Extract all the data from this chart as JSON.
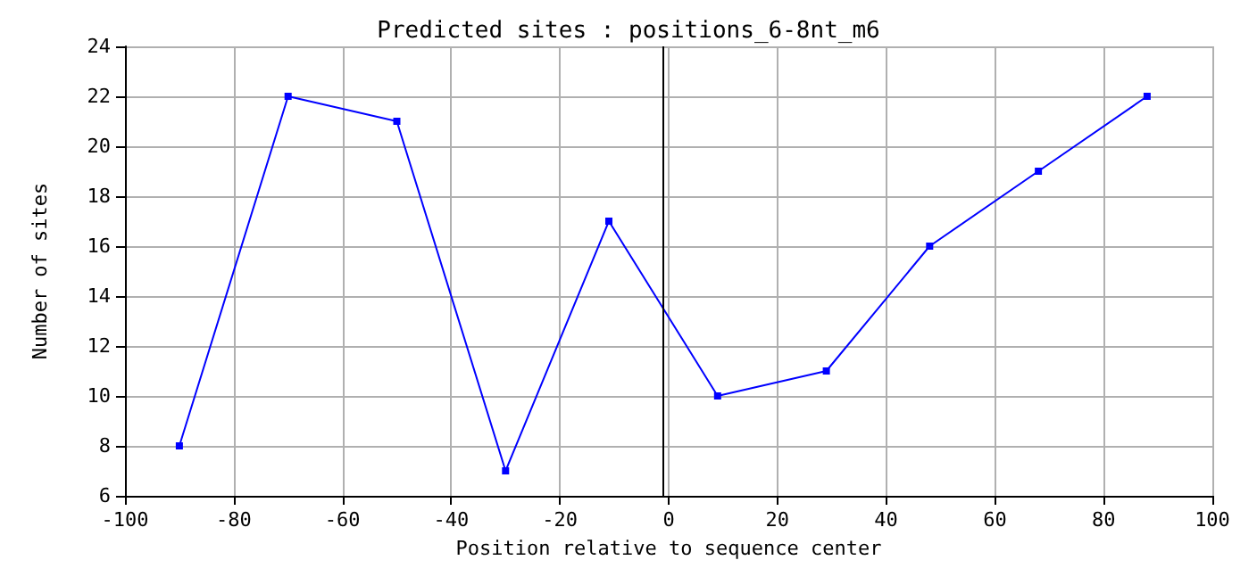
{
  "chart_data": {
    "type": "line",
    "title": "Predicted sites : positions_6-8nt_m6",
    "xlabel": "Position relative to sequence center",
    "ylabel": "Number of sites",
    "x": [
      -90,
      -70,
      -50,
      -30,
      -11,
      9,
      29,
      48,
      68,
      88
    ],
    "series": [
      {
        "color": "#0000ff",
        "values": [
          8,
          22,
          21,
          7,
          17,
          10,
          11,
          16,
          19,
          22
        ]
      }
    ],
    "xlim": [
      -100,
      100
    ],
    "xticks": [
      -100,
      -80,
      -60,
      -40,
      -20,
      0,
      20,
      40,
      60,
      80,
      100
    ],
    "ylim": [
      6,
      24
    ],
    "yticks": [
      6,
      8,
      10,
      12,
      14,
      16,
      18,
      20,
      22,
      24
    ],
    "ref_lines": [
      {
        "axis": "x",
        "value": -1,
        "color": "#000000"
      }
    ],
    "grid": true,
    "marker": "square",
    "line_style": "solid"
  }
}
